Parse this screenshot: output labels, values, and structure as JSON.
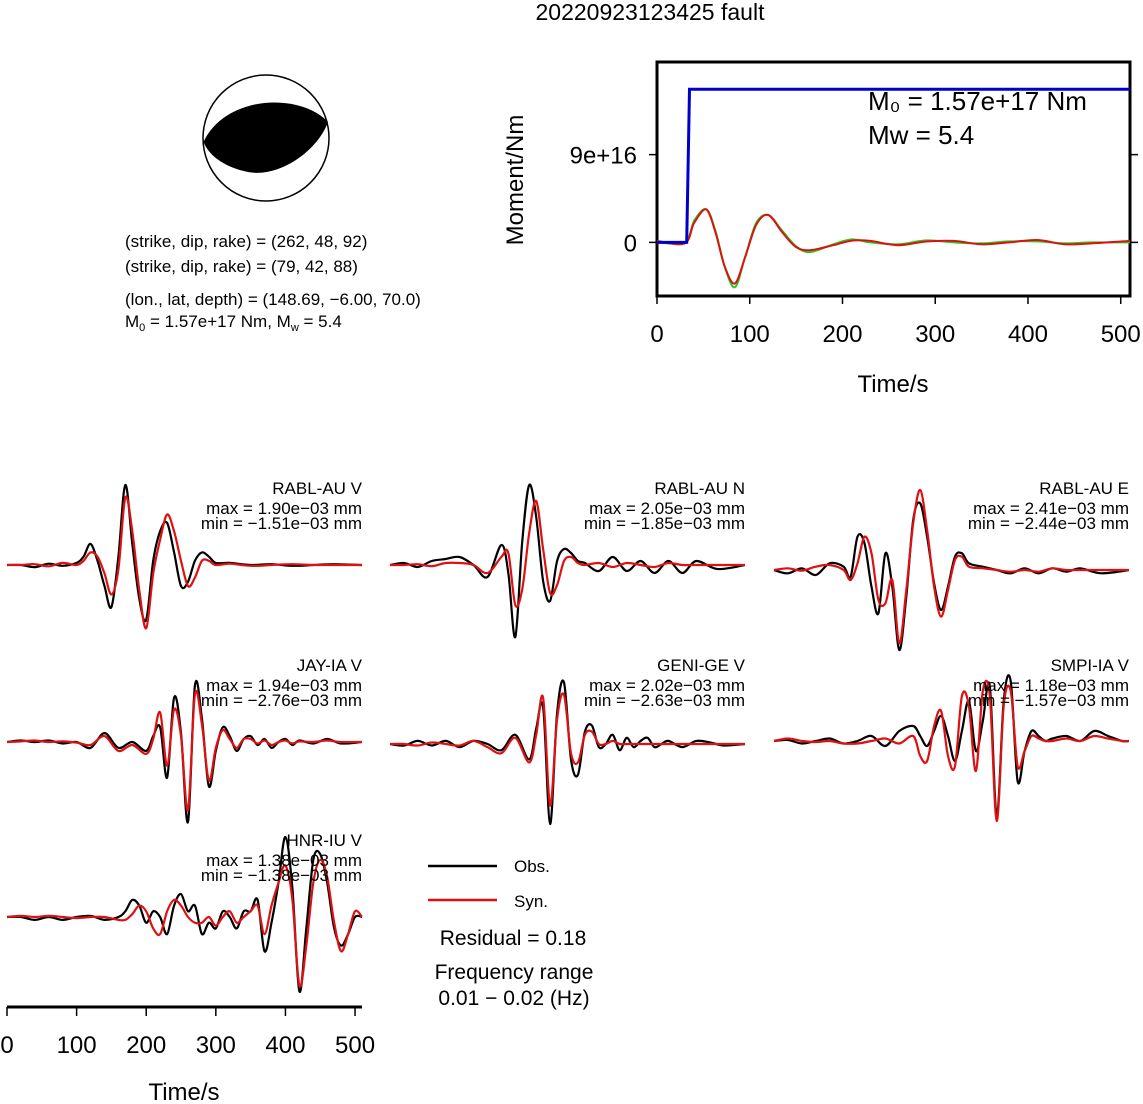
{
  "title": "20220923123425 fault",
  "mechanism": {
    "plane1": "(strike, dip, rake) = (262, 48, 92)",
    "plane2": "(strike, dip, rake) = (79, 42, 88)",
    "location": "(lon., lat, depth) = (148.69, −6.00, 70.0)",
    "moment_prefix": "M",
    "moment_sub": "0",
    "moment_value": " = 1.57e+17 Nm, M",
    "mw_sub": "w",
    "mw_value": " = 5.4"
  },
  "legend": {
    "obs": "Obs.",
    "syn": "Syn.",
    "residual": "Residual = 0.18",
    "freq_title": "Frequency range",
    "freq_value": "0.01 − 0.02 (Hz)"
  },
  "colors": {
    "obs": "#000000",
    "syn": "#dd1111",
    "moment_cumulative": "#0000cc",
    "source_time_green": "#22cc22"
  },
  "chart_data": [
    {
      "type": "line",
      "title": "",
      "xlabel": "Time/s",
      "ylabel": "Moment/Nm",
      "xlim": [
        0,
        510
      ],
      "ylim": [
        -5.5e+16,
        1.85e+17
      ],
      "x_ticks": [
        "0",
        "100",
        "200",
        "300",
        "400",
        "500"
      ],
      "y_ticks": [
        "0",
        "9e+16"
      ],
      "annotation": {
        "m0": "M₀ = 1.57e+17 Nm",
        "mw": "Mw = 5.4"
      },
      "series": [
        {
          "color": "blue",
          "x": [
            0,
            32,
            35,
            38,
            510
          ],
          "values": [
            0,
            0,
            1.57e+17,
            1.57e+17,
            1.57e+17
          ]
        }
      ],
      "stf": {
        "x": [
          0,
          30,
          40,
          53,
          63,
          73,
          84,
          95,
          107,
          120,
          135,
          150,
          165,
          190,
          210,
          230,
          260,
          290,
          320,
          350,
          380,
          410,
          440,
          470,
          510
        ],
        "values": [
          0,
          0,
          2.2e+16,
          3.4e+16,
          1.2e+16,
          -2.5e+16,
          -4.6e+16,
          -1.5e+16,
          2e+16,
          2.8e+16,
          1.2e+16,
          -4000000000000000.0,
          -1e+16,
          -2000000000000000.0,
          3000000000000000.0,
          0,
          -2000000000000000.0,
          2000000000000000.0,
          0,
          -1000000000000000.0,
          1000000000000000.0,
          1000000000000000.0,
          -1000000000000000.0,
          0,
          0
        ]
      }
    },
    {
      "type": "line",
      "station": "RABL-AU V",
      "max": "max = 1.90e−03 mm",
      "min": "min = −1.51e−03 mm",
      "x": [
        0,
        20,
        40,
        60,
        80,
        100,
        110,
        120,
        130,
        140,
        150,
        160,
        170,
        180,
        190,
        200,
        210,
        220,
        230,
        240,
        250,
        260,
        270,
        280,
        290,
        300,
        320,
        350,
        380,
        410,
        440,
        470,
        510
      ],
      "obs": [
        0,
        0,
        -0.05,
        0.03,
        -0.02,
        0.05,
        0.2,
        0.5,
        0.1,
        -0.5,
        -1.0,
        0.2,
        1.9,
        0.5,
        -0.8,
        -1.3,
        0.1,
        0.8,
        1.0,
        0.3,
        -0.5,
        -0.4,
        0.1,
        0.3,
        0.2,
        0.05,
        0.05,
        0,
        0.02,
        -0.02,
        0,
        0.02,
        0
      ],
      "syn": [
        0,
        0,
        0.02,
        -0.03,
        0.05,
        0,
        0.1,
        0.3,
        0.2,
        -0.2,
        -0.7,
        -0.1,
        1.6,
        0.8,
        -0.6,
        -1.5,
        -0.2,
        0.6,
        1.2,
        0.8,
        0.1,
        -0.5,
        -0.3,
        0.1,
        0.1,
        0,
        0.03,
        -0.02,
        0,
        0.02,
        0,
        0,
        0
      ]
    },
    {
      "type": "line",
      "station": "RABL-AU N",
      "max": "max = 2.05e−03 mm",
      "min": "min = −1.85e−03 mm",
      "x": [
        0,
        20,
        40,
        60,
        80,
        100,
        120,
        140,
        160,
        170,
        180,
        190,
        200,
        210,
        220,
        230,
        240,
        250,
        260,
        270,
        280,
        300,
        320,
        340,
        360,
        380,
        400,
        420,
        440,
        470,
        510
      ],
      "obs": [
        0,
        0.05,
        -0.05,
        0.1,
        0.15,
        0.2,
        0,
        -0.3,
        0.5,
        -0.2,
        -1.8,
        0.6,
        2.0,
        1.2,
        -0.4,
        -0.9,
        0.1,
        0.4,
        0.3,
        0.1,
        0.05,
        -0.15,
        0.2,
        -0.15,
        0.1,
        -0.2,
        0.1,
        -0.2,
        0.1,
        -0.1,
        0
      ],
      "syn": [
        0,
        0,
        0.02,
        -0.03,
        0.05,
        0.05,
        0,
        -0.2,
        0.2,
        0.3,
        -1.0,
        -0.6,
        0.8,
        1.6,
        0.4,
        -0.7,
        -0.5,
        0.1,
        0.2,
        0.05,
        0,
        0.05,
        -0.05,
        0.05,
        0,
        -0.05,
        0.05,
        0,
        0,
        0,
        0
      ]
    },
    {
      "type": "line",
      "station": "RABL-AU E",
      "max": "max = 2.41e−03 mm",
      "min": "min = −2.44e−03 mm",
      "x": [
        0,
        20,
        40,
        60,
        80,
        100,
        110,
        120,
        130,
        140,
        150,
        160,
        170,
        180,
        190,
        200,
        210,
        220,
        230,
        240,
        250,
        260,
        270,
        280,
        300,
        320,
        340,
        360,
        380,
        400,
        420,
        440,
        470,
        510
      ],
      "obs": [
        0,
        -0.1,
        0.05,
        -0.15,
        0.2,
        0.1,
        -0.2,
        1.0,
        0.8,
        -0.5,
        -1.3,
        0.5,
        -0.5,
        -2.4,
        -0.8,
        1.5,
        2.0,
        1.0,
        -0.4,
        -1.2,
        -0.5,
        0.4,
        0.5,
        0.2,
        0.1,
        0,
        -0.1,
        0.05,
        -0.1,
        0.05,
        -0.05,
        0.05,
        -0.1,
        0
      ],
      "syn": [
        0,
        0.05,
        -0.02,
        0.1,
        0.15,
        0,
        -0.3,
        0.2,
        1.0,
        0.5,
        -0.9,
        -1.0,
        -0.3,
        -2.2,
        -0.6,
        1.4,
        2.4,
        1.2,
        -0.5,
        -1.4,
        -0.6,
        0.3,
        0.4,
        0.1,
        0.05,
        0,
        -0.05,
        0,
        -0.05,
        0.05,
        0,
        0,
        0,
        0
      ]
    },
    {
      "type": "line",
      "station": "JAY-IA V",
      "max": "max = 1.94e−03 mm",
      "min": "min = −2.76e−03 mm",
      "x": [
        0,
        20,
        40,
        60,
        80,
        100,
        120,
        140,
        160,
        180,
        200,
        210,
        220,
        230,
        240,
        250,
        260,
        270,
        280,
        290,
        300,
        310,
        320,
        330,
        340,
        350,
        360,
        370,
        380,
        390,
        400,
        410,
        420,
        440,
        460,
        480,
        510
      ],
      "obs": [
        0,
        0.05,
        0,
        0.05,
        -0.05,
        0,
        -0.2,
        0.3,
        -0.2,
        0,
        -0.3,
        0.2,
        0.5,
        -1.2,
        1.5,
        0.3,
        -2.7,
        1.9,
        0.8,
        -1.5,
        -0.3,
        0.5,
        0.2,
        -0.3,
        0.1,
        0.2,
        -0.1,
        0.1,
        -0.2,
        0,
        0.1,
        -0.1,
        0.05,
        -0.05,
        0.1,
        -0.05,
        0
      ],
      "syn": [
        0,
        0.02,
        0.05,
        0,
        0.02,
        -0.02,
        -0.1,
        0.2,
        -0.3,
        -0.1,
        -0.4,
        0.1,
        1.0,
        -0.8,
        1.1,
        0.2,
        -2.3,
        1.6,
        0.6,
        -1.3,
        -0.2,
        0.4,
        0.1,
        -0.2,
        0.1,
        0.1,
        -0.05,
        0.05,
        -0.1,
        0,
        0.05,
        -0.05,
        0.02,
        0,
        0.05,
        0,
        0
      ]
    },
    {
      "type": "line",
      "station": "GENI-GE V",
      "max": "max = 2.02e−03 mm",
      "min": "min = −2.63e−03 mm",
      "x": [
        0,
        20,
        40,
        60,
        80,
        100,
        120,
        140,
        160,
        180,
        200,
        210,
        220,
        230,
        240,
        250,
        260,
        270,
        280,
        290,
        300,
        310,
        320,
        330,
        340,
        350,
        360,
        370,
        380,
        390,
        400,
        420,
        440,
        460,
        480,
        510
      ],
      "obs": [
        0,
        -0.05,
        0.1,
        -0.05,
        0.1,
        -0.1,
        0.1,
        0,
        -0.2,
        0.3,
        -0.5,
        0.5,
        1.2,
        -2.6,
        1.0,
        2.0,
        -0.5,
        -1.0,
        0.4,
        0.6,
        -0.1,
        0,
        0.3,
        -0.2,
        0.2,
        -0.1,
        0.1,
        0.2,
        -0.1,
        0,
        0.1,
        -0.1,
        0.1,
        0.05,
        -0.05,
        0
      ],
      "syn": [
        0,
        0,
        -0.05,
        0.05,
        0,
        -0.05,
        0.1,
        -0.1,
        -0.3,
        0.2,
        -0.6,
        0.3,
        1.5,
        -2.0,
        0.8,
        1.6,
        -0.3,
        -0.6,
        0.3,
        0.4,
        0,
        0,
        0.1,
        0,
        0,
        0,
        0,
        0,
        0,
        0,
        0,
        0,
        0,
        0,
        0,
        0
      ]
    },
    {
      "type": "line",
      "station": "SMPI-IA V",
      "max": "max = 1.18e−03 mm",
      "min": "min = −1.57e−03 mm",
      "x": [
        0,
        20,
        40,
        60,
        80,
        100,
        120,
        140,
        160,
        180,
        200,
        210,
        220,
        230,
        240,
        250,
        260,
        270,
        280,
        290,
        300,
        310,
        320,
        330,
        340,
        350,
        360,
        370,
        380,
        390,
        400,
        420,
        440,
        460,
        480,
        500,
        510
      ],
      "obs": [
        0,
        0.02,
        -0.05,
        0,
        0.05,
        -0.05,
        0,
        0.1,
        -0.1,
        0.2,
        0.3,
        0.1,
        -0.1,
        0.2,
        0.5,
        0.1,
        -0.4,
        0.2,
        0.8,
        -0.2,
        0.4,
        1.1,
        -1.5,
        0.8,
        1.2,
        -0.8,
        -0.2,
        0.2,
        0.1,
        0,
        0.05,
        0.1,
        0,
        0.2,
        0.1,
        0,
        0
      ],
      "syn": [
        0,
        0.05,
        0,
        -0.02,
        0,
        -0.05,
        -0.05,
        0,
        0.05,
        -0.05,
        0.1,
        -0.3,
        -0.4,
        0.3,
        0.6,
        -0.3,
        -0.5,
        0.9,
        0.7,
        -0.6,
        1.0,
        0.9,
        -1.6,
        0.7,
        1.0,
        -0.5,
        -0.2,
        0.1,
        0.05,
        0,
        0,
        0.05,
        0,
        0.1,
        0.05,
        0,
        0
      ]
    },
    {
      "type": "line",
      "station": "HNR-IU V",
      "max": "max = 1.38e−03 mm",
      "min": "min = −1.38e−03 mm",
      "x": [
        0,
        20,
        40,
        60,
        80,
        100,
        120,
        140,
        160,
        170,
        180,
        190,
        200,
        210,
        220,
        230,
        240,
        250,
        260,
        270,
        280,
        290,
        300,
        310,
        320,
        330,
        340,
        350,
        360,
        370,
        380,
        390,
        400,
        410,
        420,
        430,
        440,
        450,
        460,
        470,
        480,
        490,
        500,
        510
      ],
      "obs": [
        0,
        0,
        -0.05,
        0,
        -0.05,
        0,
        0.02,
        -0.05,
        0,
        0.1,
        0.3,
        0.2,
        -0.1,
        0.1,
        0,
        -0.3,
        0.2,
        0.4,
        0.1,
        0.2,
        -0.3,
        -0.1,
        -0.2,
        0.1,
        0,
        -0.2,
        0.1,
        0.1,
        0.3,
        -0.6,
        -0.1,
        0.6,
        1.4,
        0.5,
        -1.3,
        -0.2,
        1.0,
        1.1,
        0.6,
        -0.2,
        -0.5,
        -0.3,
        0,
        0
      ],
      "syn": [
        0,
        0.02,
        0,
        0.02,
        0,
        -0.02,
        0,
        0,
        -0.05,
        -0.05,
        0.05,
        0.2,
        0.1,
        -0.2,
        -0.3,
        0.1,
        0.3,
        0.2,
        0,
        -0.1,
        -0.1,
        0,
        -0.15,
        0,
        0.1,
        -0.1,
        0,
        0.1,
        0.2,
        -0.3,
        0.2,
        0.6,
        0.9,
        0.3,
        -1.2,
        -0.5,
        0.6,
        1.0,
        0.7,
        -0.1,
        -0.6,
        -0.3,
        0.1,
        0
      ]
    }
  ]
}
